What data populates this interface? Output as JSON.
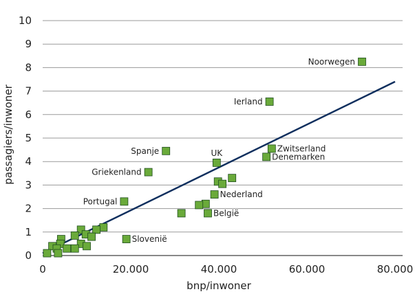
{
  "chart_data": {
    "type": "scatter",
    "title": "",
    "xlabel": "bnp/inwoner",
    "ylabel": "passagiers/inwoner",
    "xlim": [
      0,
      82000
    ],
    "ylim": [
      0,
      10
    ],
    "x_ticks": [
      {
        "value": 0,
        "label": "0"
      },
      {
        "value": 20000,
        "label": "20.000"
      },
      {
        "value": 40000,
        "label": "40.000"
      },
      {
        "value": 60000,
        "label": "60.000"
      },
      {
        "value": 80000,
        "label": "80.000"
      }
    ],
    "y_ticks": [
      {
        "value": 0,
        "label": "0"
      },
      {
        "value": 1,
        "label": "1"
      },
      {
        "value": 2,
        "label": "2"
      },
      {
        "value": 3,
        "label": "3"
      },
      {
        "value": 4,
        "label": "4"
      },
      {
        "value": 5,
        "label": "5"
      },
      {
        "value": 6,
        "label": "6"
      },
      {
        "value": 7,
        "label": "7"
      },
      {
        "value": 8,
        "label": "8"
      },
      {
        "value": 9,
        "label": "9"
      },
      {
        "value": 10,
        "label": "10"
      }
    ],
    "grid": "horizontal",
    "trendline": {
      "x": [
        0,
        80000
      ],
      "y": [
        0.1,
        7.4
      ]
    },
    "points": [
      {
        "x": 72500,
        "y": 8.25,
        "label": "Noorwegen",
        "anchor": "left"
      },
      {
        "x": 51500,
        "y": 6.55,
        "label": "Ierland",
        "anchor": "left"
      },
      {
        "x": 52000,
        "y": 4.55,
        "label": "Zwitserland",
        "anchor": "right"
      },
      {
        "x": 50800,
        "y": 4.2,
        "label": "Denemarken",
        "anchor": "right"
      },
      {
        "x": 28000,
        "y": 4.45,
        "label": "Spanje",
        "anchor": "left"
      },
      {
        "x": 39500,
        "y": 3.95,
        "label": "UK",
        "anchor": "above"
      },
      {
        "x": 24000,
        "y": 3.55,
        "label": "Griekenland",
        "anchor": "left"
      },
      {
        "x": 43000,
        "y": 3.3,
        "label": "",
        "anchor": "none"
      },
      {
        "x": 39800,
        "y": 3.15,
        "label": "",
        "anchor": "none"
      },
      {
        "x": 40800,
        "y": 3.05,
        "label": "",
        "anchor": "none"
      },
      {
        "x": 39000,
        "y": 2.6,
        "label": "Nederland",
        "anchor": "right"
      },
      {
        "x": 18500,
        "y": 2.3,
        "label": "Portugal",
        "anchor": "left"
      },
      {
        "x": 37000,
        "y": 2.2,
        "label": "",
        "anchor": "none"
      },
      {
        "x": 35500,
        "y": 2.15,
        "label": "",
        "anchor": "none"
      },
      {
        "x": 31500,
        "y": 1.8,
        "label": "",
        "anchor": "none"
      },
      {
        "x": 37500,
        "y": 1.8,
        "label": "België",
        "anchor": "right"
      },
      {
        "x": 13800,
        "y": 1.2,
        "label": "",
        "anchor": "none"
      },
      {
        "x": 12200,
        "y": 1.1,
        "label": "",
        "anchor": "none"
      },
      {
        "x": 8700,
        "y": 1.1,
        "label": "",
        "anchor": "none"
      },
      {
        "x": 9800,
        "y": 0.9,
        "label": "",
        "anchor": "none"
      },
      {
        "x": 7300,
        "y": 0.85,
        "label": "",
        "anchor": "none"
      },
      {
        "x": 11100,
        "y": 0.8,
        "label": "",
        "anchor": "none"
      },
      {
        "x": 19000,
        "y": 0.7,
        "label": "Slovenië",
        "anchor": "right"
      },
      {
        "x": 4200,
        "y": 0.7,
        "label": "",
        "anchor": "none"
      },
      {
        "x": 4000,
        "y": 0.5,
        "label": "",
        "anchor": "none"
      },
      {
        "x": 8700,
        "y": 0.5,
        "label": "",
        "anchor": "none"
      },
      {
        "x": 10000,
        "y": 0.4,
        "label": "",
        "anchor": "none"
      },
      {
        "x": 2200,
        "y": 0.4,
        "label": "",
        "anchor": "none"
      },
      {
        "x": 3200,
        "y": 0.3,
        "label": "",
        "anchor": "none"
      },
      {
        "x": 5500,
        "y": 0.3,
        "label": "",
        "anchor": "none"
      },
      {
        "x": 7300,
        "y": 0.3,
        "label": "",
        "anchor": "none"
      },
      {
        "x": 1000,
        "y": 0.1,
        "label": "",
        "anchor": "none"
      },
      {
        "x": 3500,
        "y": 0.1,
        "label": "",
        "anchor": "none"
      }
    ],
    "colors": {
      "marker_fill": "#6aaa3a",
      "trendline": "#0f2f5e"
    }
  }
}
